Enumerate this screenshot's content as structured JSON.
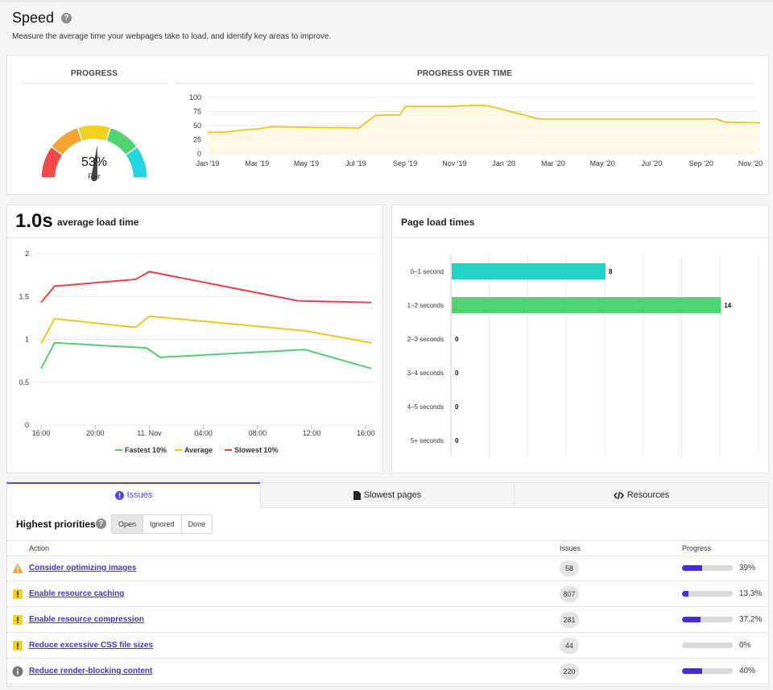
{
  "page": {
    "title": "Speed",
    "subtitle": "Measure the average time your webpages take to load, and identify key areas to improve."
  },
  "progress": {
    "heading": "PROGRESS",
    "percent_label": "53%",
    "percent_value": 53,
    "rating": "Fair",
    "gauge_colors": [
      "#f24a4a",
      "#f5a533",
      "#f2d21c",
      "#52d16f",
      "#22d3e0"
    ]
  },
  "progress_over_time": {
    "heading": "PROGRESS OVER TIME",
    "chart_data": {
      "type": "line",
      "y_ticks": [
        "100",
        "75",
        "50",
        "25",
        "0"
      ],
      "ylim": [
        0,
        100
      ],
      "x_ticks": [
        "Jan '19",
        "Mar '19",
        "May '19",
        "Jul '19",
        "Sep '19",
        "Nov '19",
        "Jan '20",
        "Mar '20",
        "May '20",
        "Jul '20",
        "Sep '20",
        "Nov '20"
      ],
      "color": "#f2c31c",
      "points": [
        [
          0,
          38
        ],
        [
          0.3,
          38
        ],
        [
          0.5,
          40
        ],
        [
          0.8,
          43
        ],
        [
          1.0,
          44
        ],
        [
          1.3,
          48
        ],
        [
          2.0,
          47
        ],
        [
          3.0,
          46
        ],
        [
          3.05,
          45
        ],
        [
          3.4,
          68
        ],
        [
          3.9,
          69
        ],
        [
          4.0,
          84
        ],
        [
          5.0,
          84
        ],
        [
          5.1,
          85
        ],
        [
          5.6,
          86
        ],
        [
          5.75,
          84
        ],
        [
          6.7,
          62
        ],
        [
          7.8,
          62
        ],
        [
          10.3,
          62
        ],
        [
          10.5,
          56
        ],
        [
          11.2,
          55
        ]
      ]
    }
  },
  "avg_load": {
    "value": "1.0s",
    "title": "average load time",
    "chart_data": {
      "type": "line",
      "ylim": [
        0,
        2
      ],
      "y_ticks": [
        "2",
        "1.5",
        "1",
        "0.5",
        "0"
      ],
      "x_ticks": [
        "16:00",
        "20:00",
        "11. Nov",
        "04:00",
        "08:00",
        "12:00",
        "16:00"
      ],
      "series": [
        {
          "name": "Fastest 10%",
          "color": "#4fd16a",
          "values": [
            [
              0,
              0.66
            ],
            [
              1.0,
              0.96
            ],
            [
              7.8,
              0.9
            ],
            [
              8.8,
              0.79
            ],
            [
              19.5,
              0.88
            ],
            [
              24.4,
              0.66
            ]
          ]
        },
        {
          "name": "Average",
          "color": "#f2c31c",
          "values": [
            [
              0,
              0.95
            ],
            [
              1.0,
              1.24
            ],
            [
              7.0,
              1.14
            ],
            [
              8.0,
              1.27
            ],
            [
              19.5,
              1.1
            ],
            [
              24.4,
              0.96
            ]
          ]
        },
        {
          "name": "Slowest 10%",
          "color": "#ee4040",
          "values": [
            [
              0,
              1.43
            ],
            [
              1.0,
              1.62
            ],
            [
              7.0,
              1.7
            ],
            [
              8.0,
              1.79
            ],
            [
              19.0,
              1.45
            ],
            [
              24.4,
              1.43
            ]
          ]
        }
      ]
    }
  },
  "page_load": {
    "title": "Page load times",
    "chart_data": {
      "type": "bar",
      "orientation": "horizontal",
      "categories": [
        "0–1 second",
        "1–2 seconds",
        "2–3 seconds",
        "3–4 seconds",
        "4–5 seconds",
        "5+ seconds"
      ],
      "values": [
        8,
        14,
        0,
        0,
        0,
        0
      ],
      "colors": [
        "#22d3c5",
        "#52d16f",
        "#52d16f",
        "#52d16f",
        "#52d16f",
        "#52d16f"
      ],
      "xlim": [
        0,
        16
      ]
    }
  },
  "tabs": [
    {
      "label": "Issues",
      "icon": "exclamation-circle-icon",
      "active": true
    },
    {
      "label": "Slowest pages",
      "icon": "document-icon",
      "active": false
    },
    {
      "label": "Resources",
      "icon": "code-icon",
      "active": false
    }
  ],
  "issues": {
    "title": "Highest priorities",
    "filters": [
      "Open",
      "Ignored",
      "Done"
    ],
    "selected_filter": "Open",
    "columns": {
      "action": "Action",
      "issues": "Issues",
      "progress": "Progress"
    },
    "rows": [
      {
        "action": "Consider optimizing images",
        "icon": "warning-triangle-icon",
        "count": "58",
        "progress_label": "39%",
        "progress": 0.39
      },
      {
        "action": "Enable resource caching",
        "icon": "exclamation-square-icon",
        "count": "807",
        "progress_label": "13.3%",
        "progress": 0.133
      },
      {
        "action": "Enable resource compression",
        "icon": "exclamation-square-icon",
        "count": "281",
        "progress_label": "37.2%",
        "progress": 0.372
      },
      {
        "action": "Reduce excessive CSS file sizes",
        "icon": "exclamation-square-icon",
        "count": "44",
        "progress_label": "0%",
        "progress": 0
      },
      {
        "action": "Reduce render-blocking content",
        "icon": "info-circle-icon",
        "count": "220",
        "progress_label": "40%",
        "progress": 0.4
      }
    ]
  }
}
